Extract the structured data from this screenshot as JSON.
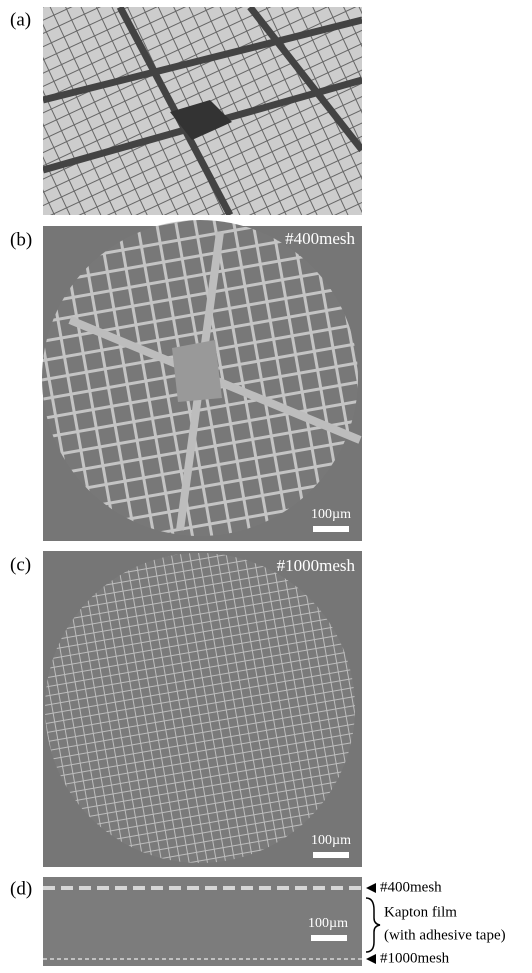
{
  "panels": [
    {
      "label": "(a)"
    },
    {
      "label": "(b)",
      "annotation": "#400mesh",
      "scale_bar": "100µm"
    },
    {
      "label": "(c)",
      "annotation": "#1000mesh",
      "scale_bar": "100µm"
    },
    {
      "label": "(d)",
      "scale_bar": "100µm",
      "side_labels": [
        "#400mesh",
        "Kapton film",
        "(with adhesive tape)",
        "#1000mesh"
      ]
    }
  ]
}
